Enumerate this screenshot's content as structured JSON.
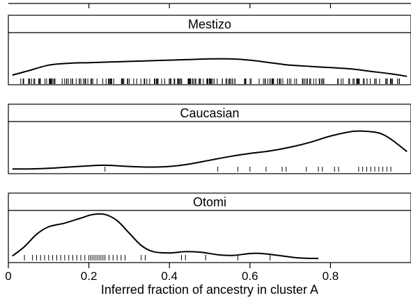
{
  "chart_data": {
    "type": "density-rug",
    "xlabel": "Inferred fraction of ancestry in cluster A",
    "xlim": [
      0,
      1
    ],
    "x_tick_values": [
      0,
      0.2,
      0.4,
      0.6,
      0.8
    ],
    "x_tick_labels": [
      "0",
      "0.2",
      "0.4",
      "0.6",
      "0.8"
    ],
    "panels": [
      {
        "name": "Mestizo",
        "density_curve": [
          [
            0.01,
            0.1
          ],
          [
            0.05,
            0.17
          ],
          [
            0.1,
            0.26
          ],
          [
            0.15,
            0.29
          ],
          [
            0.2,
            0.3
          ],
          [
            0.25,
            0.31
          ],
          [
            0.3,
            0.32
          ],
          [
            0.35,
            0.33
          ],
          [
            0.4,
            0.34
          ],
          [
            0.45,
            0.35
          ],
          [
            0.5,
            0.36
          ],
          [
            0.55,
            0.36
          ],
          [
            0.6,
            0.34
          ],
          [
            0.65,
            0.3
          ],
          [
            0.7,
            0.26
          ],
          [
            0.75,
            0.24
          ],
          [
            0.8,
            0.22
          ],
          [
            0.85,
            0.2
          ],
          [
            0.9,
            0.16
          ],
          [
            0.95,
            0.12
          ],
          [
            0.99,
            0.08
          ]
        ],
        "rug_range": [
          0.03,
          0.98
        ],
        "rug_count": 210
      },
      {
        "name": "Caucasian",
        "density_curve": [
          [
            0.01,
            0.02
          ],
          [
            0.05,
            0.02
          ],
          [
            0.1,
            0.03
          ],
          [
            0.15,
            0.05
          ],
          [
            0.2,
            0.07
          ],
          [
            0.24,
            0.08
          ],
          [
            0.3,
            0.06
          ],
          [
            0.35,
            0.05
          ],
          [
            0.4,
            0.06
          ],
          [
            0.45,
            0.1
          ],
          [
            0.5,
            0.16
          ],
          [
            0.55,
            0.22
          ],
          [
            0.6,
            0.27
          ],
          [
            0.65,
            0.31
          ],
          [
            0.7,
            0.37
          ],
          [
            0.75,
            0.45
          ],
          [
            0.8,
            0.55
          ],
          [
            0.85,
            0.62
          ],
          [
            0.88,
            0.63
          ],
          [
            0.92,
            0.6
          ],
          [
            0.95,
            0.5
          ],
          [
            0.99,
            0.3
          ]
        ],
        "rug": [
          0.24,
          0.52,
          0.57,
          0.6,
          0.64,
          0.68,
          0.69,
          0.74,
          0.77,
          0.78,
          0.81,
          0.82,
          0.87,
          0.88,
          0.89,
          0.9,
          0.91,
          0.92,
          0.93,
          0.94,
          0.95
        ]
      },
      {
        "name": "Otomi",
        "density_curve": [
          [
            0.01,
            0.05
          ],
          [
            0.04,
            0.2
          ],
          [
            0.07,
            0.4
          ],
          [
            0.1,
            0.52
          ],
          [
            0.14,
            0.58
          ],
          [
            0.18,
            0.66
          ],
          [
            0.21,
            0.72
          ],
          [
            0.24,
            0.72
          ],
          [
            0.27,
            0.62
          ],
          [
            0.3,
            0.42
          ],
          [
            0.33,
            0.22
          ],
          [
            0.36,
            0.12
          ],
          [
            0.4,
            0.1
          ],
          [
            0.44,
            0.12
          ],
          [
            0.48,
            0.11
          ],
          [
            0.52,
            0.07
          ],
          [
            0.56,
            0.06
          ],
          [
            0.6,
            0.09
          ],
          [
            0.63,
            0.09
          ],
          [
            0.67,
            0.06
          ],
          [
            0.72,
            0.02
          ],
          [
            0.77,
            0.01
          ]
        ],
        "rug": [
          0.04,
          0.06,
          0.07,
          0.08,
          0.09,
          0.1,
          0.11,
          0.12,
          0.13,
          0.14,
          0.15,
          0.16,
          0.17,
          0.18,
          0.19,
          0.2,
          0.205,
          0.21,
          0.215,
          0.22,
          0.225,
          0.23,
          0.235,
          0.24,
          0.25,
          0.26,
          0.27,
          0.28,
          0.29,
          0.33,
          0.34,
          0.43,
          0.44,
          0.49,
          0.57,
          0.65
        ]
      }
    ]
  }
}
